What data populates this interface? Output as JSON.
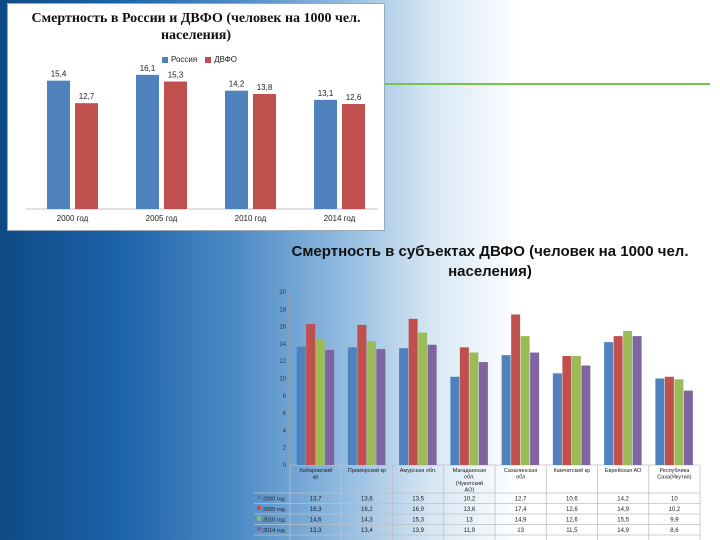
{
  "colors": {
    "russia": "#4f81bd",
    "dvfo": "#c0504d",
    "y2000": "#4f81bd",
    "y2005": "#c0504d",
    "y2010": "#9bbb59",
    "y2014": "#8064a2",
    "accent": "#79c34b"
  },
  "chart_data": [
    {
      "type": "bar",
      "title": "Смертность в России и ДВФО (человек на 1000 чел. населения)",
      "categories": [
        "2000 год",
        "2005 год",
        "2010 год",
        "2014 год"
      ],
      "series": [
        {
          "name": "Россия",
          "values": [
            15.4,
            16.1,
            14.2,
            13.1
          ],
          "labels": [
            "15,4",
            "16,1",
            "14,2",
            "13,1"
          ]
        },
        {
          "name": "ДВФО",
          "values": [
            12.7,
            15.3,
            13.8,
            12.6
          ],
          "labels": [
            "12,7",
            "15,3",
            "13,8",
            "12,6"
          ]
        }
      ],
      "ylim": [
        0,
        18
      ],
      "legend": "top"
    },
    {
      "type": "bar",
      "title": "Смертность в субъектах ДВФО (человек на 1000 чел. населения)",
      "categories": [
        "Хабаровский кр",
        "Приморский кр",
        "Амурская обл.",
        "Магаданская обл. (Чукотский АО)",
        "Сахалинская обл",
        "Камчатский кр",
        "Еврейская АО",
        "Республика Саха(Якутия)"
      ],
      "series": [
        {
          "name": "2000 год",
          "values": [
            13.7,
            13.6,
            13.5,
            10.2,
            12.7,
            10.6,
            14.2,
            10
          ],
          "labels": [
            "13,7",
            "13,6",
            "13,5",
            "10,2",
            "12,7",
            "10,6",
            "14,2",
            "10"
          ]
        },
        {
          "name": "2005 год",
          "values": [
            16.3,
            16.2,
            16.9,
            13.6,
            17.4,
            12.6,
            14.9,
            10.2
          ],
          "labels": [
            "16,3",
            "16,2",
            "16,9",
            "13,6",
            "17,4",
            "12,6",
            "14,9",
            "10,2"
          ]
        },
        {
          "name": "2010 год",
          "values": [
            14.6,
            14.3,
            15.3,
            13,
            14.9,
            12.6,
            15.5,
            9.9
          ],
          "labels": [
            "14,6",
            "14,3",
            "15,3",
            "13",
            "14,9",
            "12,6",
            "15,5",
            "9,9"
          ]
        },
        {
          "name": "2014 год",
          "values": [
            13.3,
            13.4,
            13.9,
            11.9,
            13,
            11.5,
            14.9,
            8.6
          ],
          "labels": [
            "13,3",
            "13,4",
            "13,9",
            "11,9",
            "13",
            "11,5",
            "14,9",
            "8,6"
          ]
        }
      ],
      "yticks": [
        0,
        2,
        4,
        6,
        8,
        10,
        12,
        14,
        16,
        18,
        20
      ],
      "ylim": [
        0,
        20
      ],
      "legend": "data-table",
      "grid": false
    }
  ]
}
